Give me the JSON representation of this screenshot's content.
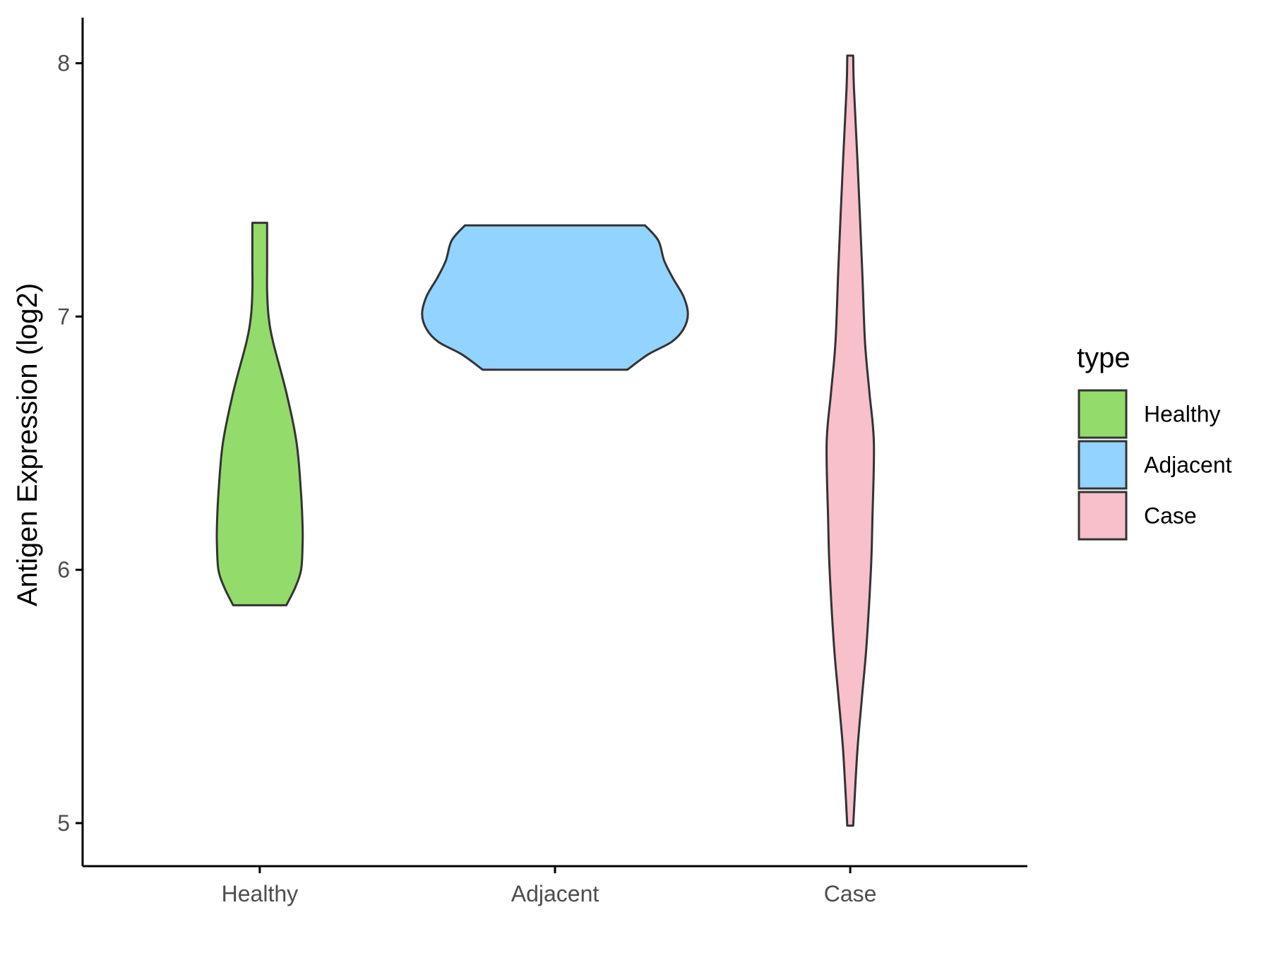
{
  "chart_data": {
    "type": "violin",
    "title": "",
    "xlabel": "",
    "ylabel": "Antigen Expression (log2)",
    "ylim": [
      4.83,
      8.18
    ],
    "yticks": [
      5,
      6,
      7,
      8
    ],
    "ytick_labels": [
      "5",
      "6",
      "7",
      "8"
    ],
    "categories": [
      "Healthy",
      "Adjacent",
      "Case"
    ],
    "grid": false,
    "legend": {
      "title": "type",
      "placement": "right",
      "entries": [
        "Healthy",
        "Adjacent",
        "Case"
      ]
    },
    "series": [
      {
        "name": "Healthy",
        "color": "#93DB6A",
        "min": 5.86,
        "max": 7.37,
        "profile": [
          [
            5.86,
            0.18
          ],
          [
            5.93,
            0.24
          ],
          [
            6.0,
            0.28
          ],
          [
            6.1,
            0.29
          ],
          [
            6.17,
            0.29
          ],
          [
            6.3,
            0.28
          ],
          [
            6.5,
            0.25
          ],
          [
            6.7,
            0.18
          ],
          [
            6.9,
            0.09
          ],
          [
            7.0,
            0.06
          ],
          [
            7.1,
            0.05
          ],
          [
            7.2,
            0.05
          ],
          [
            7.3,
            0.05
          ],
          [
            7.37,
            0.05
          ]
        ]
      },
      {
        "name": "Adjacent",
        "color": "#93D3FF",
        "min": 6.79,
        "max": 7.36,
        "profile": [
          [
            6.79,
            0.49
          ],
          [
            6.85,
            0.63
          ],
          [
            6.9,
            0.79
          ],
          [
            6.95,
            0.87
          ],
          [
            7.01,
            0.9
          ],
          [
            7.08,
            0.87
          ],
          [
            7.15,
            0.8
          ],
          [
            7.22,
            0.74
          ],
          [
            7.3,
            0.7
          ],
          [
            7.36,
            0.61
          ]
        ]
      },
      {
        "name": "Case",
        "color": "#F7C0CB",
        "min": 4.99,
        "max": 8.03,
        "profile": [
          [
            4.99,
            0.02
          ],
          [
            5.1,
            0.03
          ],
          [
            5.3,
            0.05
          ],
          [
            5.5,
            0.08
          ],
          [
            5.7,
            0.11
          ],
          [
            6.0,
            0.14
          ],
          [
            6.2,
            0.15
          ],
          [
            6.5,
            0.16
          ],
          [
            6.7,
            0.13
          ],
          [
            6.9,
            0.1
          ],
          [
            7.2,
            0.08
          ],
          [
            7.6,
            0.05
          ],
          [
            7.9,
            0.025
          ],
          [
            8.03,
            0.02
          ]
        ]
      }
    ]
  }
}
